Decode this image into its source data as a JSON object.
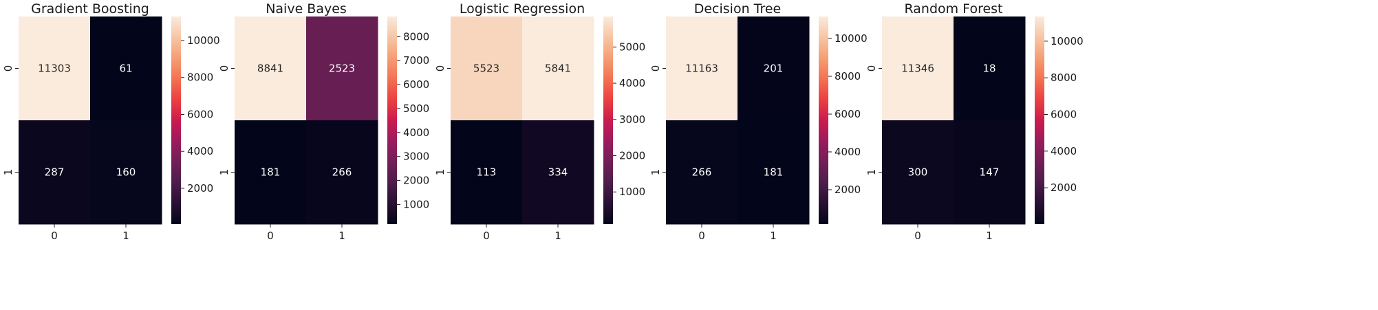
{
  "chart_data": [
    {
      "type": "heatmap",
      "title": "Gradient Boosting",
      "x_categories": [
        "0",
        "1"
      ],
      "y_categories": [
        "0",
        "1"
      ],
      "values": [
        [
          11303,
          61
        ],
        [
          287,
          160
        ]
      ],
      "colorbar": {
        "range": [
          61,
          11303
        ],
        "ticks": [
          2000,
          4000,
          6000,
          8000,
          10000
        ]
      },
      "colormap": "rocket"
    },
    {
      "type": "heatmap",
      "title": "Naive Bayes",
      "x_categories": [
        "0",
        "1"
      ],
      "y_categories": [
        "0",
        "1"
      ],
      "values": [
        [
          8841,
          2523
        ],
        [
          181,
          266
        ]
      ],
      "colorbar": {
        "range": [
          181,
          8841
        ],
        "ticks": [
          1000,
          2000,
          3000,
          4000,
          5000,
          6000,
          7000,
          8000
        ]
      },
      "colormap": "rocket"
    },
    {
      "type": "heatmap",
      "title": "Logistic Regression",
      "x_categories": [
        "0",
        "1"
      ],
      "y_categories": [
        "0",
        "1"
      ],
      "values": [
        [
          5523,
          5841
        ],
        [
          113,
          334
        ]
      ],
      "colorbar": {
        "range": [
          113,
          5841
        ],
        "ticks": [
          1000,
          2000,
          3000,
          4000,
          5000
        ]
      },
      "colormap": "rocket"
    },
    {
      "type": "heatmap",
      "title": "Decision Tree",
      "x_categories": [
        "0",
        "1"
      ],
      "y_categories": [
        "0",
        "1"
      ],
      "values": [
        [
          11163,
          201
        ],
        [
          266,
          181
        ]
      ],
      "colorbar": {
        "range": [
          181,
          11163
        ],
        "ticks": [
          2000,
          4000,
          6000,
          8000,
          10000
        ]
      },
      "colormap": "rocket"
    },
    {
      "type": "heatmap",
      "title": "Random Forest",
      "x_categories": [
        "0",
        "1"
      ],
      "y_categories": [
        "0",
        "1"
      ],
      "values": [
        [
          11346,
          18
        ],
        [
          300,
          147
        ]
      ],
      "colorbar": {
        "range": [
          18,
          11346
        ],
        "ticks": [
          2000,
          4000,
          6000,
          8000,
          10000
        ]
      },
      "colormap": "rocket"
    }
  ]
}
